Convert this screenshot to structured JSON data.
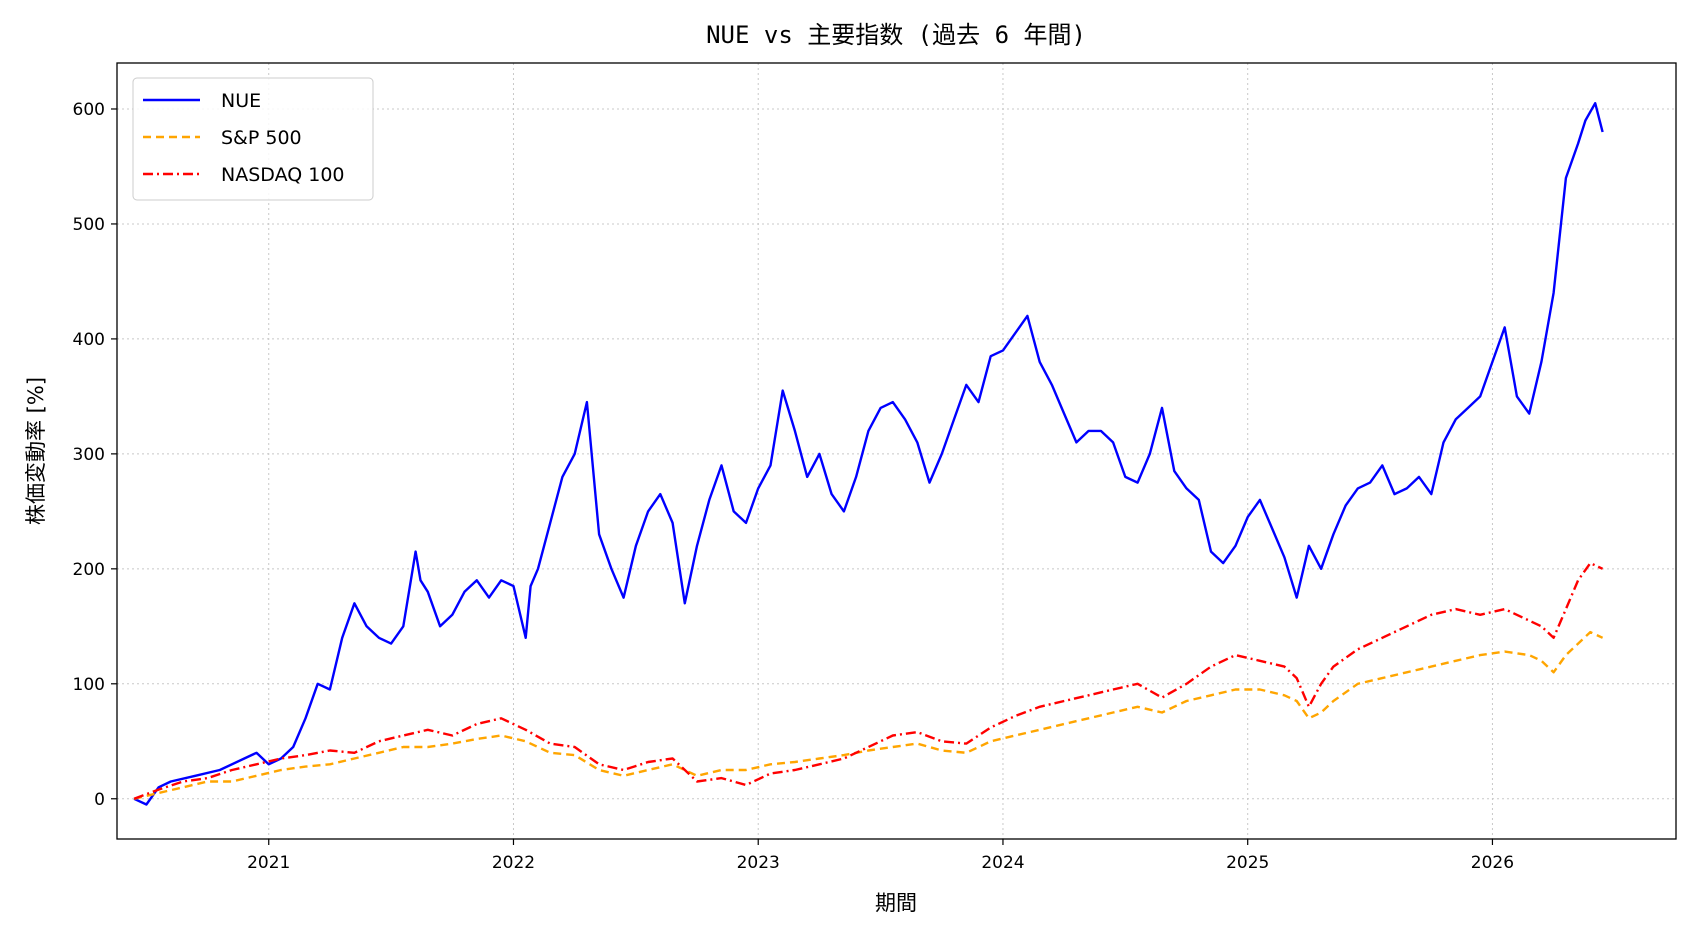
{
  "chart_data": {
    "type": "line",
    "title": "NUE vs 主要指数 (過去 6 年間)",
    "xlabel": "期間",
    "ylabel": "株価変動率 [%]",
    "xlim": [
      2020.38,
      2026.75
    ],
    "ylim": [
      -35,
      640
    ],
    "x_ticks": [
      2021,
      2022,
      2023,
      2024,
      2025,
      2026
    ],
    "x_tick_labels": [
      "2021",
      "2022",
      "2023",
      "2024",
      "2025",
      "2026"
    ],
    "y_ticks": [
      0,
      100,
      200,
      300,
      400,
      500,
      600
    ],
    "y_tick_labels": [
      "0",
      "100",
      "200",
      "300",
      "400",
      "500",
      "600"
    ],
    "grid": true,
    "legend_position": "top-left",
    "series": [
      {
        "name": "NUE",
        "color": "#0000ff",
        "style": "solid",
        "x": [
          2020.45,
          2020.5,
          2020.55,
          2020.6,
          2020.7,
          2020.8,
          2020.9,
          2020.95,
          2021.0,
          2021.05,
          2021.1,
          2021.15,
          2021.2,
          2021.25,
          2021.3,
          2021.35,
          2021.4,
          2021.45,
          2021.5,
          2021.55,
          2021.6,
          2021.62,
          2021.65,
          2021.7,
          2021.75,
          2021.8,
          2021.85,
          2021.9,
          2021.95,
          2022.0,
          2022.05,
          2022.07,
          2022.1,
          2022.15,
          2022.2,
          2022.25,
          2022.3,
          2022.35,
          2022.4,
          2022.45,
          2022.5,
          2022.55,
          2022.6,
          2022.65,
          2022.7,
          2022.75,
          2022.8,
          2022.85,
          2022.9,
          2022.95,
          2023.0,
          2023.05,
          2023.1,
          2023.15,
          2023.2,
          2023.25,
          2023.3,
          2023.35,
          2023.4,
          2023.45,
          2023.5,
          2023.55,
          2023.6,
          2023.65,
          2023.7,
          2023.75,
          2023.8,
          2023.85,
          2023.9,
          2023.95,
          2024.0,
          2024.05,
          2024.1,
          2024.15,
          2024.2,
          2024.25,
          2024.3,
          2024.35,
          2024.4,
          2024.45,
          2024.5,
          2024.55,
          2024.6,
          2024.65,
          2024.7,
          2024.75,
          2024.8,
          2024.85,
          2024.9,
          2024.95,
          2025.0,
          2025.05,
          2025.1,
          2025.15,
          2025.2,
          2025.25,
          2025.3,
          2025.35,
          2025.4,
          2025.45,
          2025.5,
          2025.55,
          2025.6,
          2025.65,
          2025.7,
          2025.75,
          2025.8,
          2025.85,
          2025.9,
          2025.95,
          2026.0,
          2026.05,
          2026.1,
          2026.15,
          2026.2,
          2026.25,
          2026.3,
          2026.35,
          2026.38,
          2026.42,
          2026.45
        ],
        "y": [
          0,
          -5,
          10,
          15,
          20,
          25,
          35,
          40,
          30,
          35,
          45,
          70,
          100,
          95,
          140,
          170,
          150,
          140,
          135,
          150,
          215,
          190,
          180,
          150,
          160,
          180,
          190,
          175,
          190,
          185,
          140,
          185,
          200,
          240,
          280,
          300,
          345,
          230,
          200,
          175,
          220,
          250,
          265,
          240,
          170,
          220,
          260,
          290,
          250,
          240,
          270,
          290,
          355,
          320,
          280,
          300,
          265,
          250,
          280,
          320,
          340,
          345,
          330,
          310,
          275,
          300,
          330,
          360,
          345,
          385,
          390,
          405,
          420,
          380,
          360,
          335,
          310,
          320,
          320,
          310,
          280,
          275,
          300,
          340,
          285,
          270,
          260,
          215,
          205,
          220,
          245,
          260,
          235,
          210,
          175,
          220,
          200,
          230,
          255,
          270,
          275,
          290,
          265,
          270,
          280,
          265,
          310,
          330,
          340,
          350,
          380,
          410,
          350,
          335,
          380,
          440,
          540,
          570,
          590,
          605,
          580
        ]
      },
      {
        "name": "S&P 500",
        "color": "#ffa500",
        "style": "dashed",
        "x": [
          2020.45,
          2020.55,
          2020.65,
          2020.75,
          2020.85,
          2020.95,
          2021.05,
          2021.15,
          2021.25,
          2021.35,
          2021.45,
          2021.55,
          2021.65,
          2021.75,
          2021.85,
          2021.95,
          2022.05,
          2022.15,
          2022.25,
          2022.35,
          2022.45,
          2022.55,
          2022.65,
          2022.75,
          2022.85,
          2022.95,
          2023.05,
          2023.15,
          2023.25,
          2023.35,
          2023.45,
          2023.55,
          2023.65,
          2023.75,
          2023.85,
          2023.95,
          2024.05,
          2024.15,
          2024.25,
          2024.35,
          2024.45,
          2024.55,
          2024.65,
          2024.75,
          2024.85,
          2024.95,
          2025.05,
          2025.15,
          2025.2,
          2025.25,
          2025.3,
          2025.35,
          2025.45,
          2025.55,
          2025.65,
          2025.75,
          2025.85,
          2025.95,
          2026.05,
          2026.15,
          2026.2,
          2026.25,
          2026.3,
          2026.35,
          2026.4,
          2026.45
        ],
        "y": [
          0,
          5,
          10,
          15,
          15,
          20,
          25,
          28,
          30,
          35,
          40,
          45,
          45,
          48,
          52,
          55,
          50,
          40,
          38,
          25,
          20,
          25,
          30,
          20,
          25,
          25,
          30,
          32,
          35,
          38,
          42,
          45,
          48,
          42,
          40,
          50,
          55,
          60,
          65,
          70,
          75,
          80,
          75,
          85,
          90,
          95,
          95,
          90,
          85,
          70,
          75,
          85,
          100,
          105,
          110,
          115,
          120,
          125,
          128,
          125,
          120,
          110,
          125,
          135,
          145,
          140
        ]
      },
      {
        "name": "NASDAQ 100",
        "color": "#ff0000",
        "style": "dashdot",
        "x": [
          2020.45,
          2020.55,
          2020.65,
          2020.75,
          2020.85,
          2020.95,
          2021.05,
          2021.15,
          2021.25,
          2021.35,
          2021.45,
          2021.55,
          2021.65,
          2021.75,
          2021.85,
          2021.95,
          2022.05,
          2022.15,
          2022.25,
          2022.35,
          2022.45,
          2022.55,
          2022.65,
          2022.75,
          2022.85,
          2022.95,
          2023.05,
          2023.15,
          2023.25,
          2023.35,
          2023.45,
          2023.55,
          2023.65,
          2023.75,
          2023.85,
          2023.95,
          2024.05,
          2024.15,
          2024.25,
          2024.35,
          2024.45,
          2024.55,
          2024.65,
          2024.75,
          2024.85,
          2024.95,
          2025.05,
          2025.15,
          2025.2,
          2025.25,
          2025.3,
          2025.35,
          2025.45,
          2025.55,
          2025.65,
          2025.75,
          2025.85,
          2025.95,
          2026.05,
          2026.15,
          2026.2,
          2026.25,
          2026.3,
          2026.35,
          2026.4,
          2026.45
        ],
        "y": [
          0,
          8,
          15,
          18,
          25,
          30,
          35,
          38,
          42,
          40,
          50,
          55,
          60,
          55,
          65,
          70,
          60,
          48,
          45,
          30,
          25,
          32,
          35,
          15,
          18,
          12,
          22,
          25,
          30,
          35,
          45,
          55,
          58,
          50,
          48,
          62,
          72,
          80,
          85,
          90,
          95,
          100,
          88,
          100,
          115,
          125,
          120,
          115,
          105,
          80,
          100,
          115,
          130,
          140,
          150,
          160,
          165,
          160,
          165,
          155,
          150,
          140,
          165,
          190,
          205,
          200
        ]
      }
    ]
  }
}
